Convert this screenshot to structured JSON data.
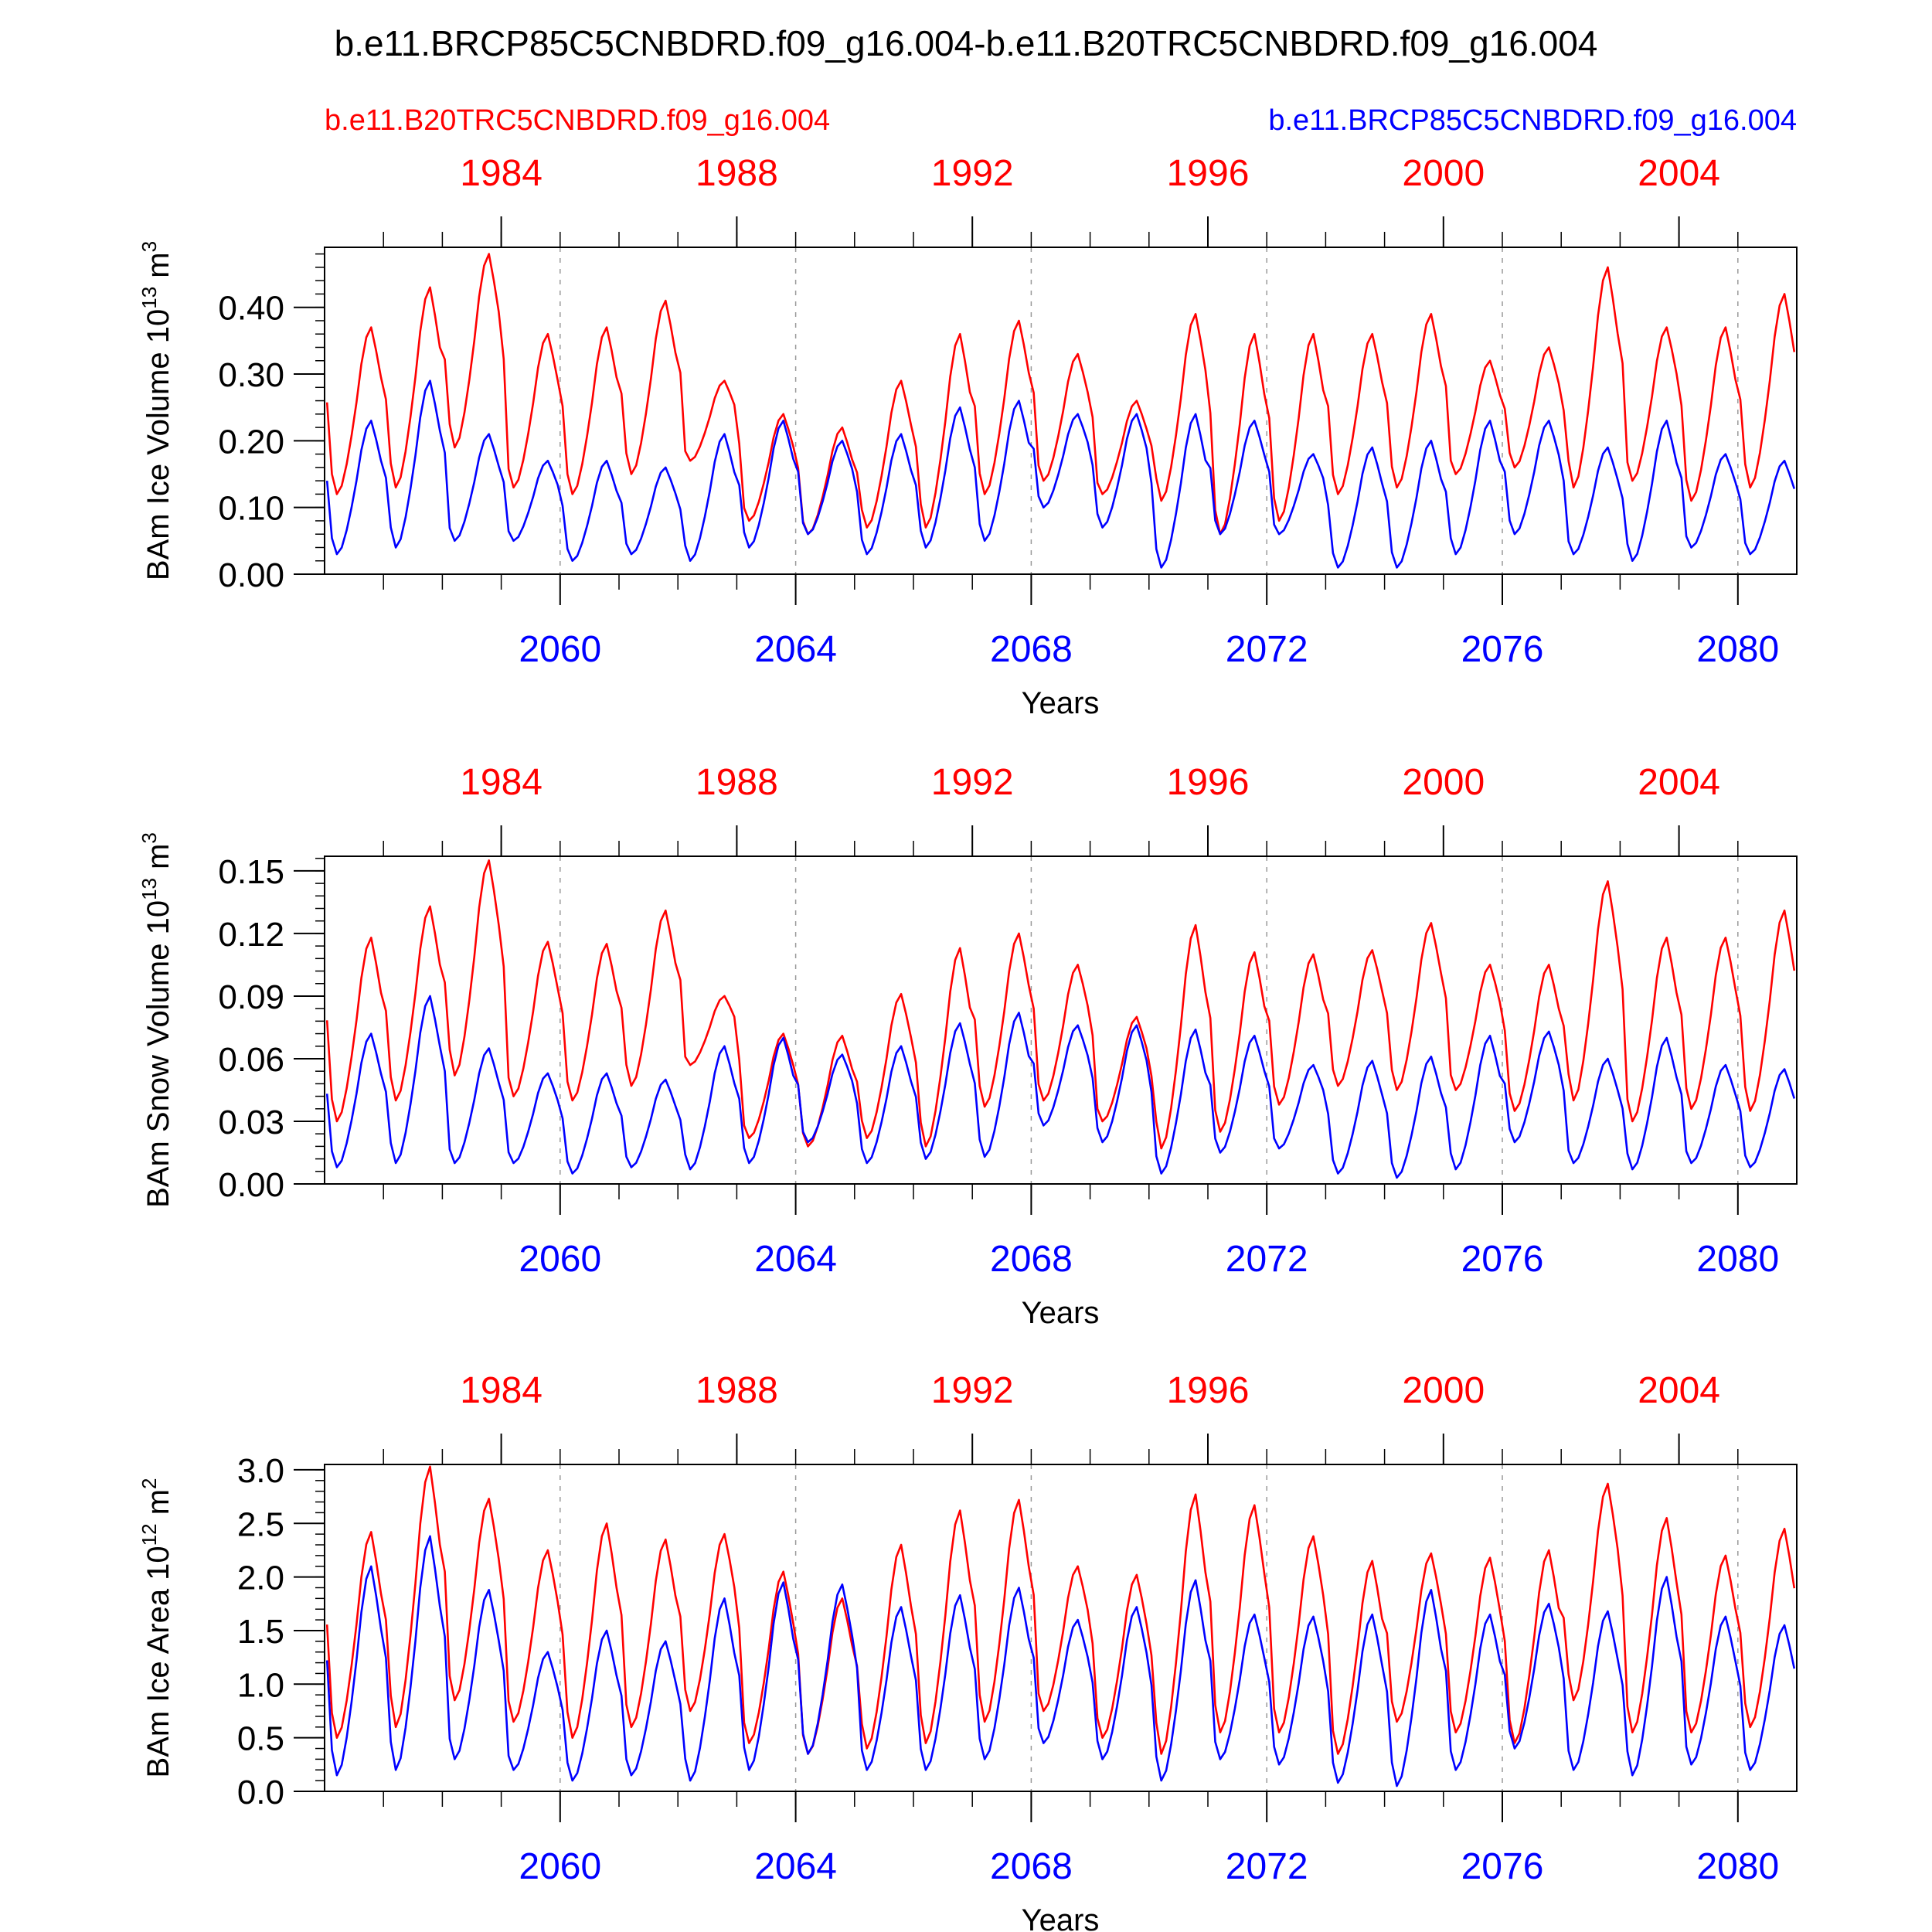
{
  "title": "b.e11.BRCP85C5CNBDRD.f09_g16.004-b.e11.B20TRC5CNBDRD.f09_g16.004",
  "legend": {
    "left_label": "b.e11.B20TRC5CNBDRD.f09_g16.004",
    "left_color": "#ff0000",
    "right_label": "b.e11.BRCP85C5CNBDRD.f09_g16.004",
    "right_color": "#0000ff"
  },
  "colors": {
    "red": "#ff0000",
    "blue": "#0000ff",
    "axis": "#000000",
    "grid": "#999999"
  },
  "chart_data": [
    {
      "type": "line",
      "ylabel": "BAm Ice Volume 10",
      "ylabel_exp": "13",
      "ylabel_unit": " m",
      "ylabel_unit_exp": "3",
      "xlabel": "Years",
      "ylim": [
        0,
        0.49
      ],
      "yticks": [
        0,
        0.1,
        0.2,
        0.3,
        0.4
      ],
      "yticklabels": [
        "0.00",
        "0.10",
        "0.20",
        "0.30",
        "0.40"
      ],
      "yminor": 0.02,
      "xlim_bottom": [
        2056,
        2081
      ],
      "xticks_bottom": [
        2060,
        2064,
        2068,
        2072,
        2076,
        2080
      ],
      "xlim_top": [
        1981,
        2006
      ],
      "xticks_top": [
        1984,
        1988,
        1992,
        1996,
        2000,
        2004
      ],
      "series": [
        {
          "name": "b.e11.B20TRC5CNBDRD.f09_g16.004",
          "color": "#ff0000",
          "lows": [
            0.12,
            0.13,
            0.19,
            0.13,
            0.12,
            0.15,
            0.17,
            0.08,
            0.06,
            0.07,
            0.07,
            0.12,
            0.14,
            0.12,
            0.11,
            0.06,
            0.08,
            0.12,
            0.13,
            0.15,
            0.16,
            0.13,
            0.14,
            0.11,
            0.13
          ],
          "highs": [
            0.37,
            0.43,
            0.48,
            0.36,
            0.37,
            0.41,
            0.29,
            0.24,
            0.22,
            0.29,
            0.36,
            0.38,
            0.33,
            0.26,
            0.39,
            0.36,
            0.36,
            0.36,
            0.39,
            0.32,
            0.34,
            0.46,
            0.37,
            0.37,
            0.42
          ]
        },
        {
          "name": "b.e11.BRCP85C5CNBDRD.f09_g16.004",
          "color": "#0000ff",
          "lows": [
            0.03,
            0.04,
            0.05,
            0.05,
            0.02,
            0.03,
            0.02,
            0.04,
            0.06,
            0.03,
            0.04,
            0.05,
            0.1,
            0.07,
            0.01,
            0.06,
            0.06,
            0.01,
            0.01,
            0.03,
            0.06,
            0.03,
            0.02,
            0.04,
            0.03
          ],
          "highs": [
            0.23,
            0.29,
            0.21,
            0.17,
            0.17,
            0.16,
            0.21,
            0.23,
            0.2,
            0.21,
            0.25,
            0.26,
            0.24,
            0.24,
            0.24,
            0.23,
            0.18,
            0.19,
            0.2,
            0.23,
            0.23,
            0.19,
            0.23,
            0.18,
            0.17
          ]
        }
      ]
    },
    {
      "type": "line",
      "ylabel": "BAm Snow Volume 10",
      "ylabel_exp": "13",
      "ylabel_unit": " m",
      "ylabel_unit_exp": "3",
      "xlabel": "Years",
      "ylim": [
        0,
        0.157
      ],
      "yticks": [
        0,
        0.03,
        0.06,
        0.09,
        0.12,
        0.15
      ],
      "yticklabels": [
        "0.00",
        "0.03",
        "0.06",
        "0.09",
        "0.12",
        "0.15"
      ],
      "yminor": 0.006,
      "xlim_bottom": [
        2056,
        2081
      ],
      "xticks_bottom": [
        2060,
        2064,
        2068,
        2072,
        2076,
        2080
      ],
      "xlim_top": [
        1981,
        2006
      ],
      "xticks_top": [
        1984,
        1988,
        1992,
        1996,
        2000,
        2004
      ],
      "series": [
        {
          "name": "b.e11.B20TRC5CNBDRD.f09_g16.004",
          "color": "#ff0000",
          "lows": [
            0.03,
            0.04,
            0.052,
            0.042,
            0.04,
            0.047,
            0.057,
            0.022,
            0.018,
            0.022,
            0.018,
            0.037,
            0.04,
            0.03,
            0.017,
            0.025,
            0.038,
            0.047,
            0.045,
            0.045,
            0.035,
            0.04,
            0.03,
            0.036,
            0.035
          ],
          "highs": [
            0.118,
            0.133,
            0.155,
            0.116,
            0.115,
            0.131,
            0.09,
            0.072,
            0.071,
            0.091,
            0.113,
            0.12,
            0.105,
            0.08,
            0.124,
            0.111,
            0.11,
            0.112,
            0.125,
            0.105,
            0.105,
            0.145,
            0.118,
            0.118,
            0.131
          ]
        },
        {
          "name": "b.e11.BRCP85C5CNBDRD.f09_g16.004",
          "color": "#0000ff",
          "lows": [
            0.008,
            0.01,
            0.01,
            0.01,
            0.005,
            0.008,
            0.007,
            0.01,
            0.02,
            0.01,
            0.012,
            0.013,
            0.028,
            0.02,
            0.005,
            0.015,
            0.017,
            0.005,
            0.003,
            0.007,
            0.02,
            0.01,
            0.007,
            0.01,
            0.008
          ],
          "highs": [
            0.072,
            0.09,
            0.065,
            0.053,
            0.053,
            0.05,
            0.066,
            0.07,
            0.062,
            0.066,
            0.077,
            0.082,
            0.076,
            0.076,
            0.074,
            0.071,
            0.057,
            0.059,
            0.061,
            0.071,
            0.073,
            0.06,
            0.07,
            0.057,
            0.055
          ]
        }
      ]
    },
    {
      "type": "line",
      "ylabel": "BAm Ice Area 10",
      "ylabel_exp": "12",
      "ylabel_unit": " m",
      "ylabel_unit_exp": "2",
      "xlabel": "Years",
      "ylim": [
        0,
        3.05
      ],
      "yticks": [
        0,
        0.5,
        1.0,
        1.5,
        2.0,
        2.5,
        3.0
      ],
      "yticklabels": [
        "0.0",
        "0.5",
        "1.0",
        "1.5",
        "2.0",
        "2.5",
        "3.0"
      ],
      "yminor": 0.1,
      "xlim_bottom": [
        2056,
        2081
      ],
      "xticks_bottom": [
        2060,
        2064,
        2068,
        2072,
        2076,
        2080
      ],
      "xlim_top": [
        1981,
        2006
      ],
      "xticks_top": [
        1984,
        1988,
        1992,
        1996,
        2000,
        2004
      ],
      "series": [
        {
          "name": "b.e11.B20TRC5CNBDRD.f09_g16.004",
          "color": "#ff0000",
          "lows": [
            0.5,
            0.6,
            0.85,
            0.65,
            0.5,
            0.6,
            0.75,
            0.45,
            0.35,
            0.4,
            0.45,
            0.65,
            0.75,
            0.5,
            0.35,
            0.55,
            0.55,
            0.35,
            0.65,
            0.55,
            0.45,
            0.85,
            0.55,
            0.55,
            0.6
          ],
          "highs": [
            2.42,
            3.03,
            2.73,
            2.25,
            2.5,
            2.35,
            2.4,
            2.05,
            1.8,
            2.3,
            2.62,
            2.72,
            2.1,
            2.02,
            2.77,
            2.67,
            2.38,
            2.15,
            2.22,
            2.18,
            2.25,
            2.87,
            2.55,
            2.2,
            2.45
          ]
        },
        {
          "name": "b.e11.BRCP85C5CNBDRD.f09_g16.004",
          "color": "#0000ff",
          "lows": [
            0.15,
            0.2,
            0.3,
            0.2,
            0.1,
            0.15,
            0.1,
            0.2,
            0.35,
            0.2,
            0.2,
            0.3,
            0.45,
            0.3,
            0.1,
            0.3,
            0.25,
            0.08,
            0.05,
            0.2,
            0.4,
            0.2,
            0.15,
            0.25,
            0.2
          ],
          "highs": [
            2.1,
            2.38,
            1.88,
            1.3,
            1.5,
            1.4,
            1.8,
            1.95,
            1.93,
            1.72,
            1.83,
            1.9,
            1.6,
            1.72,
            1.97,
            1.65,
            1.63,
            1.65,
            1.88,
            1.65,
            1.75,
            1.68,
            2.0,
            1.63,
            1.55
          ]
        }
      ]
    }
  ]
}
